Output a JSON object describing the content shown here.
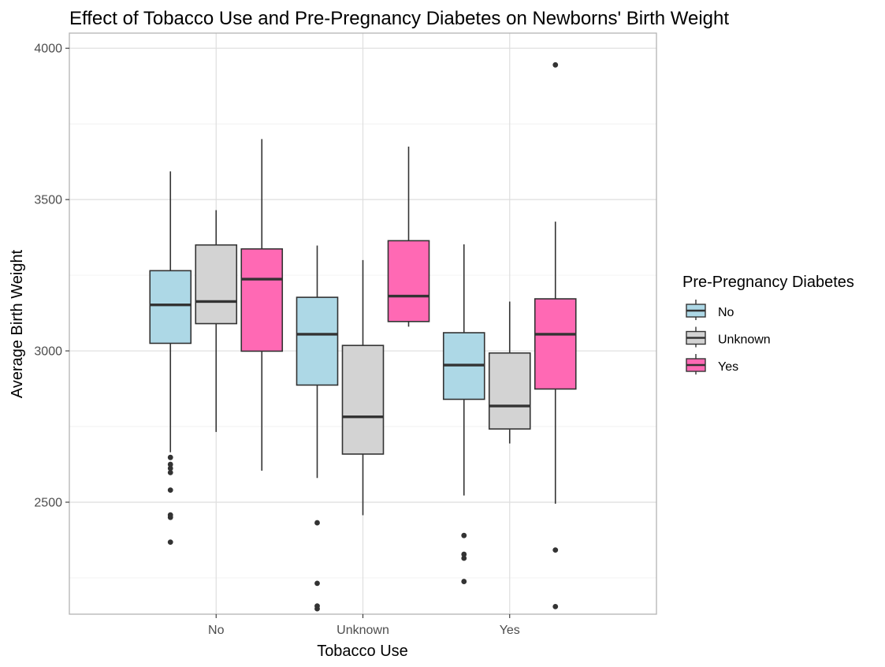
{
  "chart_data": {
    "type": "boxplot",
    "title": "Effect of Tobacco Use and Pre-Pregnancy Diabetes on Newborns' Birth Weight",
    "xlabel": "Tobacco Use",
    "ylabel": "Average Birth Weight",
    "categories": [
      "No",
      "Unknown",
      "Yes"
    ],
    "ylim": [
      2130,
      4050
    ],
    "yticks": [
      2500,
      3000,
      3500,
      4000
    ],
    "y_minor_ticks": [
      2250,
      2750,
      3250,
      3750
    ],
    "grid": true,
    "legend": {
      "title": "Pre-Pregnancy Diabetes",
      "position": "right",
      "entries": [
        "No",
        "Unknown",
        "Yes"
      ]
    },
    "series": [
      {
        "name": "No",
        "color": "#ADD8E6",
        "boxes": [
          {
            "category": "No",
            "min": 2665,
            "q1": 3025,
            "median": 3152,
            "q3": 3265,
            "max": 3593,
            "outliers": [
              2648,
              2625,
              2612,
              2598,
              2540,
              2458,
              2450,
              2368
            ]
          },
          {
            "category": "Unknown",
            "min": 2580,
            "q1": 2887,
            "median": 3055,
            "q3": 3177,
            "max": 3348,
            "outliers": [
              2432,
              2232,
              2157,
              2148
            ]
          },
          {
            "category": "Yes",
            "min": 2522,
            "q1": 2840,
            "median": 2953,
            "q3": 3060,
            "max": 3352,
            "outliers": [
              2390,
              2328,
              2315,
              2238
            ]
          }
        ]
      },
      {
        "name": "Unknown",
        "color": "#D3D3D3",
        "boxes": [
          {
            "category": "No",
            "min": 2732,
            "q1": 3090,
            "median": 3163,
            "q3": 3350,
            "max": 3465,
            "outliers": []
          },
          {
            "category": "Unknown",
            "min": 2457,
            "q1": 2659,
            "median": 2782,
            "q3": 3018,
            "max": 3300,
            "outliers": []
          },
          {
            "category": "Yes",
            "min": 2694,
            "q1": 2742,
            "median": 2818,
            "q3": 2993,
            "max": 3163,
            "outliers": []
          }
        ]
      },
      {
        "name": "Yes",
        "color": "#FF69B4",
        "boxes": [
          {
            "category": "No",
            "min": 2604,
            "q1": 2999,
            "median": 3237,
            "q3": 3337,
            "max": 3700,
            "outliers": []
          },
          {
            "category": "Unknown",
            "min": 3080,
            "q1": 3097,
            "median": 3181,
            "q3": 3364,
            "max": 3675,
            "outliers": []
          },
          {
            "category": "Yes",
            "min": 2495,
            "q1": 2874,
            "median": 3055,
            "q3": 3172,
            "max": 3427,
            "outliers": [
              3945,
              2342,
              2155
            ]
          }
        ]
      }
    ]
  }
}
